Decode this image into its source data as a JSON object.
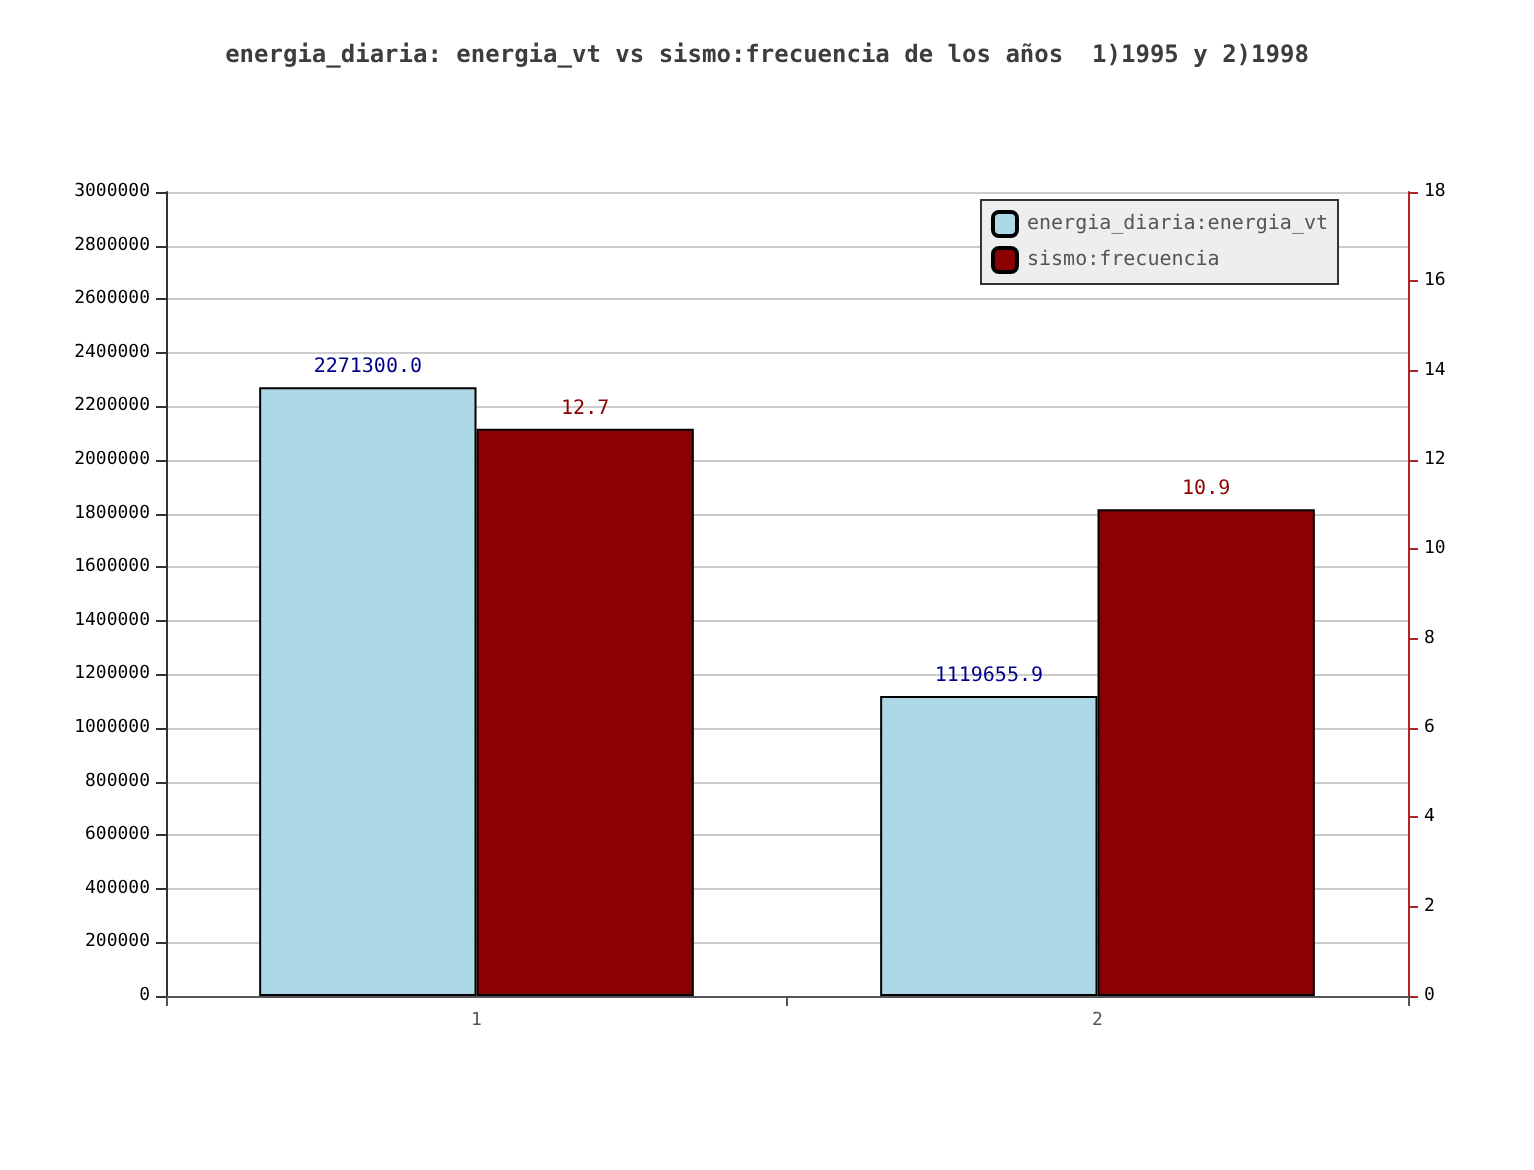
{
  "chart_data": {
    "type": "bar",
    "title": "energia_diaria: energia_vt vs sismo:frecuencia de los años  1)1995 y 2)1998",
    "categories": [
      "1",
      "2"
    ],
    "series": [
      {
        "name": "energia_diaria:energia_vt",
        "color": "#add8e6",
        "values": [
          2271300.0,
          1119655.9
        ],
        "value_labels": [
          "2271300.0",
          "1119655.9"
        ]
      },
      {
        "name": "sismo:frecuencia",
        "color": "#8b0000",
        "values": [
          12.7,
          10.9
        ],
        "value_labels": [
          "12.7",
          "10.9"
        ],
        "axis": "y2"
      }
    ],
    "ylim": [
      0,
      3000000
    ],
    "yticks": [
      0,
      200000,
      400000,
      600000,
      800000,
      1000000,
      1200000,
      1400000,
      1600000,
      1800000,
      2000000,
      2200000,
      2400000,
      2600000,
      2800000,
      3000000
    ],
    "y2lim": [
      0,
      18
    ],
    "y2ticks": [
      0,
      2,
      4,
      6,
      8,
      10,
      12,
      14,
      16,
      18
    ],
    "grid": "y",
    "legend": "top right"
  }
}
